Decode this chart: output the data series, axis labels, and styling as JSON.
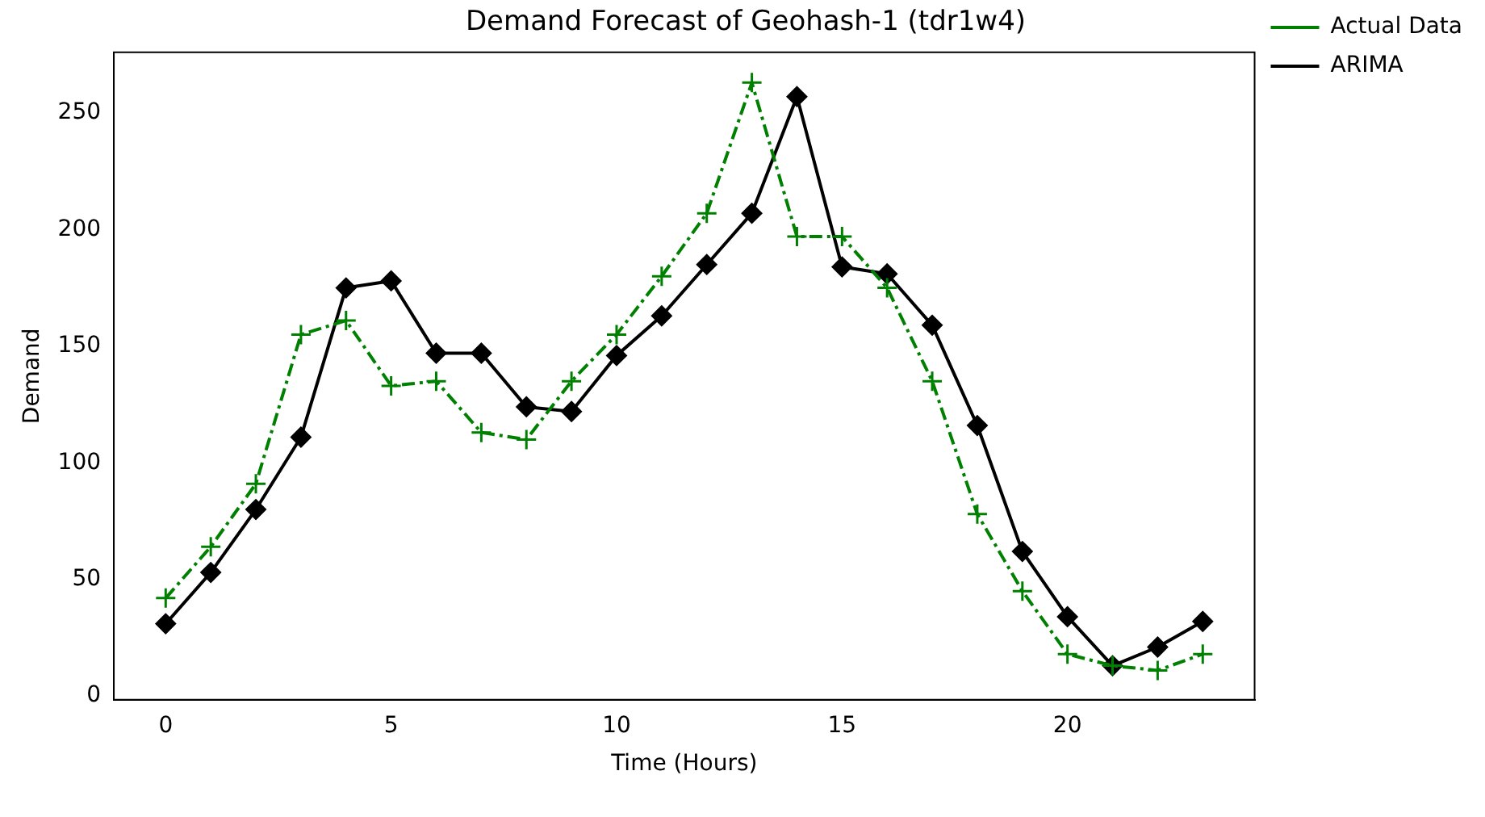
{
  "chart_data": {
    "type": "line",
    "title": "Demand Forecast of Geohash-1 (tdr1w4)",
    "xlabel": "Time (Hours)",
    "ylabel": "Demand",
    "x": [
      0,
      1,
      2,
      3,
      4,
      5,
      6,
      7,
      8,
      9,
      10,
      11,
      12,
      13,
      14,
      15,
      16,
      17,
      18,
      19,
      20,
      21,
      22,
      23
    ],
    "series": [
      {
        "name": "Actual Data",
        "color": "#008000",
        "marker": "cross",
        "line_style": "dashed",
        "values": [
          42,
          64,
          91,
          155,
          161,
          133,
          135,
          113,
          110,
          135,
          155,
          180,
          207,
          263,
          197,
          197,
          175,
          135,
          78,
          45,
          18,
          13,
          11,
          18
        ]
      },
      {
        "name": "ARIMA",
        "color": "#000000",
        "marker": "diamond",
        "line_style": "solid",
        "values": [
          31,
          53,
          80,
          111,
          175,
          178,
          147,
          147,
          124,
          122,
          146,
          163,
          185,
          207,
          257,
          184,
          181,
          159,
          116,
          62,
          34,
          13,
          21,
          32
        ]
      }
    ],
    "xlim": [
      -1.15,
      24.15
    ],
    "xticks": [
      0,
      5,
      10,
      15,
      20
    ],
    "ylim": [
      -1.6,
      276
    ],
    "yticks": [
      0,
      50,
      100,
      150,
      200,
      250
    ],
    "grid": false,
    "legend": "top right"
  }
}
